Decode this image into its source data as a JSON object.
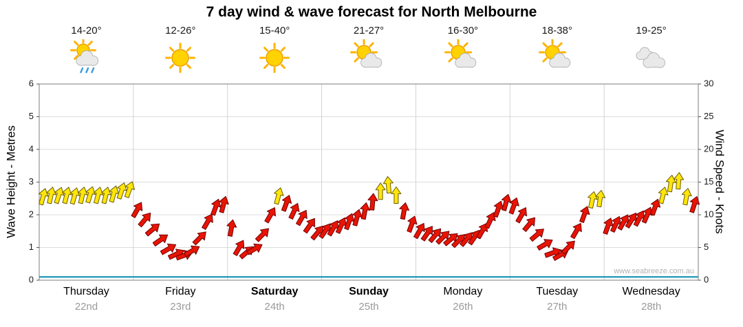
{
  "title": "7 day wind & wave forecast for North Melbourne",
  "watermark": "www.seabreeze.com.au",
  "axes": {
    "left": {
      "label": "Wave Height - Metres",
      "ticks": [
        "0",
        "1",
        "2",
        "3",
        "4",
        "5",
        "6"
      ],
      "range": [
        0,
        6
      ]
    },
    "right": {
      "label": "Wind Speed - Knots",
      "ticks": [
        "0",
        "5",
        "10",
        "15",
        "20",
        "25",
        "30"
      ],
      "range": [
        0,
        30
      ]
    }
  },
  "days": [
    {
      "name": "Thursday",
      "date": "22nd",
      "temp": "14-20°",
      "icon": "sun-rain",
      "bold": false
    },
    {
      "name": "Friday",
      "date": "23rd",
      "temp": "12-26°",
      "icon": "sun",
      "bold": false
    },
    {
      "name": "Saturday",
      "date": "24th",
      "temp": "15-40°",
      "icon": "sun",
      "bold": true
    },
    {
      "name": "Sunday",
      "date": "25th",
      "temp": "21-27°",
      "icon": "sun-cloud",
      "bold": true
    },
    {
      "name": "Monday",
      "date": "26th",
      "temp": "16-30°",
      "icon": "sun-cloud",
      "bold": false
    },
    {
      "name": "Tuesday",
      "date": "27th",
      "temp": "18-38°",
      "icon": "sun-cloud",
      "bold": false
    },
    {
      "name": "Wednesday",
      "date": "28th",
      "temp": "19-25°",
      "icon": "clouds",
      "bold": false
    }
  ],
  "chart_data": {
    "type": "line",
    "title": "7 day wind & wave forecast for North Melbourne",
    "categories": [
      "Thursday 22nd",
      "Friday 23rd",
      "Saturday 24th",
      "Sunday 25th",
      "Monday 26th",
      "Tuesday 27th",
      "Wednesday 28th"
    ],
    "y_left": {
      "label": "Wave Height - Metres",
      "range": [
        0,
        6
      ],
      "grid": true
    },
    "y_right": {
      "label": "Wind Speed - Knots",
      "range": [
        0,
        30
      ],
      "grid": true
    },
    "legend": "none",
    "samples_per_day": 12,
    "palette": {
      "yellow": "#ffe609",
      "yellow_edge": "#6b5b00",
      "red": "#e81404",
      "red_edge": "#700000",
      "wave": "#2fa0bd"
    },
    "series": [
      {
        "name": "Wind Speed",
        "unit": "knots",
        "axis": "right",
        "style": "direction-arrows",
        "knots": [
          12.8,
          13,
          13,
          13,
          12.9,
          13,
          13.1,
          13,
          13,
          13.2,
          13.7,
          13.9,
          10.8,
          9.3,
          7.8,
          6.2,
          4.8,
          4,
          3.8,
          4.5,
          6.5,
          9,
          11.2,
          11.6,
          8,
          5,
          4.3,
          4.8,
          7,
          10,
          12.9,
          11.8,
          10.6,
          9.6,
          8.4,
          7.3,
          7.6,
          8,
          8.4,
          9,
          9.6,
          10.6,
          12,
          13.6,
          14.6,
          13,
          10.6,
          8.6,
          7.6,
          7.2,
          6.9,
          6.6,
          6.3,
          6.1,
          6.3,
          6.6,
          7.6,
          9.2,
          10.9,
          11.9,
          11.4,
          10,
          8.6,
          7,
          5.5,
          4.2,
          3.9,
          5.1,
          7.6,
          10.1,
          12.3,
          12.5,
          8.3,
          8.6,
          8.9,
          9.2,
          9.5,
          10,
          11.2,
          13,
          14.8,
          15.2,
          12.8,
          11.6
        ],
        "dir_deg": [
          -75,
          -78,
          -72,
          -76,
          -74,
          -77,
          -73,
          -75,
          -76,
          -74,
          -72,
          -70,
          -60,
          -50,
          -40,
          -35,
          -30,
          -25,
          -20,
          -30,
          -45,
          -60,
          -70,
          -75,
          -80,
          -60,
          -40,
          -30,
          -45,
          -60,
          -75,
          -70,
          -65,
          -60,
          -55,
          -50,
          -55,
          -60,
          -65,
          -70,
          -75,
          -80,
          -85,
          -90,
          -95,
          -90,
          -80,
          -70,
          -60,
          -55,
          -50,
          -45,
          -40,
          -45,
          -50,
          -55,
          -60,
          -65,
          -70,
          -75,
          -70,
          -60,
          -50,
          -40,
          -30,
          -20,
          -30,
          -45,
          -60,
          -70,
          -78,
          -82,
          -70,
          -65,
          -60,
          -58,
          -62,
          -66,
          -70,
          -76,
          -82,
          -86,
          -80,
          -72
        ],
        "color": [
          "y",
          "y",
          "y",
          "y",
          "y",
          "y",
          "y",
          "y",
          "y",
          "y",
          "y",
          "y",
          "r",
          "r",
          "r",
          "r",
          "r",
          "r",
          "r",
          "r",
          "r",
          "r",
          "r",
          "r",
          "r",
          "r",
          "r",
          "r",
          "r",
          "r",
          "y",
          "r",
          "r",
          "r",
          "r",
          "r",
          "r",
          "r",
          "r",
          "r",
          "r",
          "r",
          "r",
          "y",
          "y",
          "y",
          "r",
          "r",
          "r",
          "r",
          "r",
          "r",
          "r",
          "r",
          "r",
          "r",
          "r",
          "r",
          "r",
          "r",
          "r",
          "r",
          "r",
          "r",
          "r",
          "r",
          "r",
          "r",
          "r",
          "r",
          "y",
          "y",
          "r",
          "r",
          "r",
          "r",
          "r",
          "r",
          "r",
          "y",
          "y",
          "y",
          "y",
          "r"
        ]
      },
      {
        "name": "Wave Height",
        "unit": "metres",
        "axis": "left",
        "style": "line",
        "t": [
          0,
          1
        ],
        "metres": [
          0.1,
          0.1
        ]
      }
    ]
  }
}
